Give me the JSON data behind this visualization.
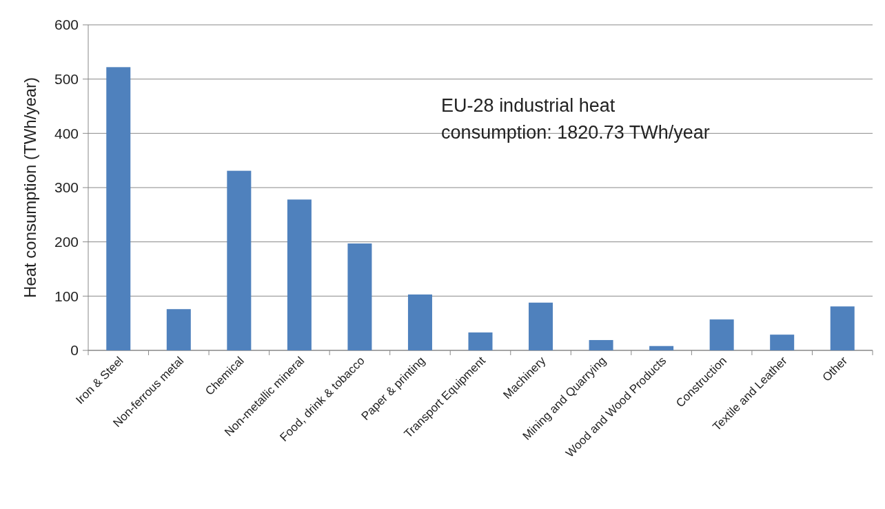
{
  "chart_data": {
    "type": "bar",
    "ylabel": "Heat consumption (TWh/year)",
    "categories": [
      "Iron & Steel",
      "Non-ferrous metal",
      "Chemical",
      "Non-metallic mineral",
      "Food, drink & tobacco",
      "Paper & printing",
      "Transport Equipment",
      "Machinery",
      "Mining and Quarrying",
      "Wood and Wood Products",
      "Construction",
      "Textile and Leather",
      "Other"
    ],
    "values": [
      522,
      76,
      331,
      278,
      197,
      103,
      33,
      88,
      19,
      8,
      57,
      29,
      81
    ],
    "color": "#4f81bd",
    "ylim": [
      0,
      600
    ],
    "yticks": [
      0,
      100,
      200,
      300,
      400,
      500,
      600
    ],
    "grid": "y",
    "annotations": [
      "EU-28 industrial heat\nconsumption: 1820.73 TWh/year"
    ]
  }
}
